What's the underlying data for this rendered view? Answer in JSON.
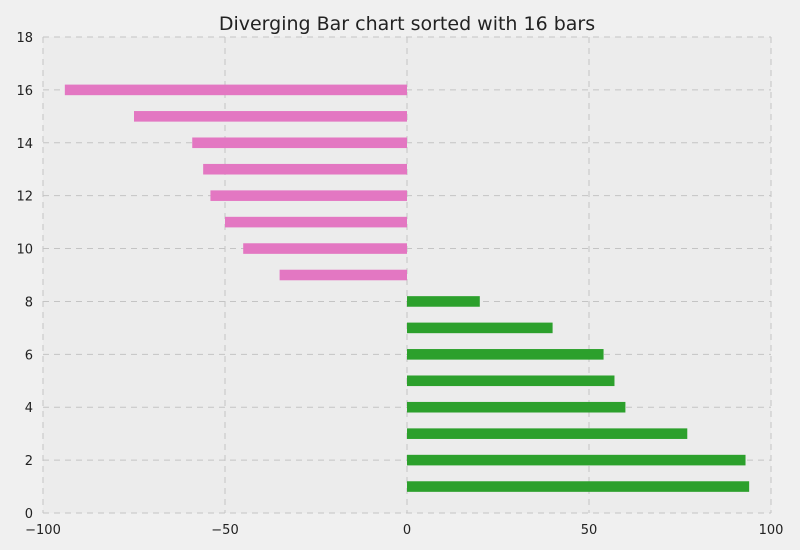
{
  "chart_data": {
    "type": "bar",
    "orientation": "horizontal",
    "title": "Diverging Bar chart sorted with 16 bars",
    "xlabel": "",
    "ylabel": "",
    "xlim": [
      -100,
      100
    ],
    "ylim": [
      0,
      18
    ],
    "x_ticks": [
      -100,
      -50,
      0,
      50,
      100
    ],
    "x_tick_labels": [
      "−100",
      "−50",
      "0",
      "50",
      "100"
    ],
    "y_ticks": [
      0,
      2,
      4,
      6,
      8,
      10,
      12,
      14,
      16,
      18
    ],
    "y_tick_labels": [
      "0",
      "2",
      "4",
      "6",
      "8",
      "10",
      "12",
      "14",
      "16",
      "18"
    ],
    "grid": true,
    "colors": {
      "negative": "#e377c2",
      "positive": "#2ca02c",
      "background": "#ececec"
    },
    "y": [
      1,
      2,
      3,
      4,
      5,
      6,
      7,
      8,
      9,
      10,
      11,
      12,
      13,
      14,
      15,
      16
    ],
    "values": [
      94,
      93,
      77,
      60,
      57,
      54,
      40,
      20,
      -35,
      -45,
      -50,
      -54,
      -56,
      -59,
      -75,
      -94
    ]
  }
}
